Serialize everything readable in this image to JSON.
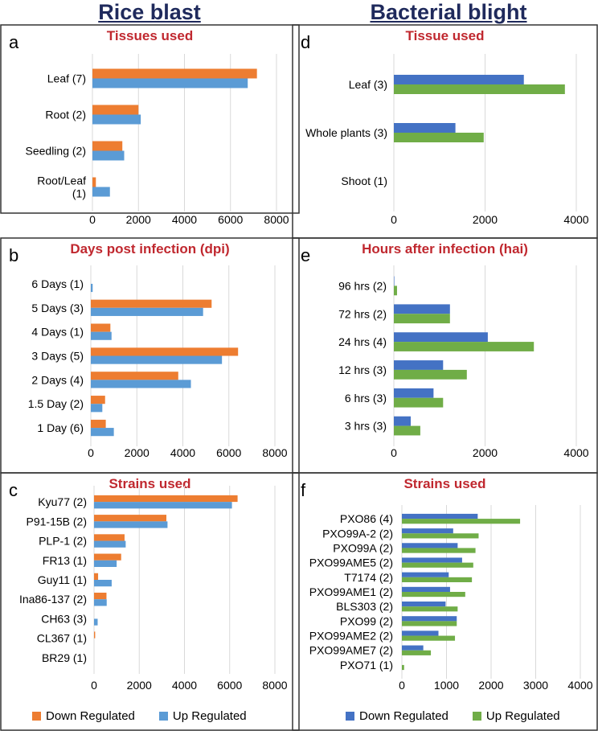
{
  "column_titles": {
    "left": "Rice blast",
    "right": "Bacterial blight"
  },
  "colors": {
    "down_rice": "#ED7D31",
    "up_rice": "#5B9BD5",
    "down_bb": "#4472C4",
    "up_bb": "#70AD47",
    "title": "#C0282F",
    "grid": "#D9D9D9",
    "border": "#333333"
  },
  "legends": {
    "left": {
      "down": "Down Regulated",
      "up": "Up Regulated"
    },
    "right": {
      "down": "Down Regulated",
      "up": "Up Regulated"
    }
  },
  "chart_data": [
    {
      "id": "a",
      "panel_label": "a",
      "type": "bar",
      "orientation": "horizontal",
      "title": "Tissues used",
      "categories": [
        "Leaf (7)",
        "Root (2)",
        "Seedling (2)",
        "Root/Leaf\n(1)"
      ],
      "series": [
        {
          "name": "Down Regulated",
          "values": [
            7150,
            2000,
            1300,
            150
          ]
        },
        {
          "name": "Up Regulated",
          "values": [
            6750,
            2100,
            1380,
            760
          ]
        }
      ],
      "xlim": [
        0,
        8000
      ],
      "xticks": [
        0,
        2000,
        4000,
        6000,
        8000
      ]
    },
    {
      "id": "b",
      "panel_label": "b",
      "type": "bar",
      "orientation": "horizontal",
      "title": "Days post infection (dpi)",
      "categories": [
        "6 Days (1)",
        "5 Days (3)",
        "4 Days (1)",
        "3 Days (5)",
        "2 Days (4)",
        "1.5 Day (2)",
        "1 Day (6)"
      ],
      "series": [
        {
          "name": "Down Regulated",
          "values": [
            0,
            5250,
            850,
            6400,
            3800,
            620,
            650
          ]
        },
        {
          "name": "Up Regulated",
          "values": [
            80,
            4880,
            900,
            5700,
            4350,
            500,
            1000
          ]
        }
      ],
      "xlim": [
        0,
        8000
      ],
      "xticks": [
        0,
        2000,
        4000,
        6000,
        8000
      ]
    },
    {
      "id": "c",
      "panel_label": "c",
      "type": "bar",
      "orientation": "horizontal",
      "title": "Strains used",
      "categories": [
        "Kyu77 (2)",
        "P91-15B (2)",
        "PLP-1 (2)",
        "FR13 (1)",
        "Guy11 (1)",
        "Ina86-137 (2)",
        "CH63 (3)",
        "CL367 (1)",
        "BR29 (1)"
      ],
      "series": [
        {
          "name": "Down Regulated",
          "values": [
            6350,
            3200,
            1350,
            1200,
            180,
            550,
            0,
            50,
            0
          ]
        },
        {
          "name": "Up Regulated",
          "values": [
            6100,
            3250,
            1400,
            1000,
            780,
            560,
            160,
            0,
            0
          ]
        }
      ],
      "xlim": [
        0,
        8000
      ],
      "xticks": [
        0,
        2000,
        4000,
        6000,
        8000
      ]
    },
    {
      "id": "d",
      "panel_label": "d",
      "type": "bar",
      "orientation": "horizontal",
      "title": "Tissue used",
      "categories": [
        "Leaf (3)",
        "Whole plants (3)",
        "Shoot (1)"
      ],
      "series": [
        {
          "name": "Down Regulated",
          "values": [
            2850,
            1350,
            0
          ]
        },
        {
          "name": "Up Regulated",
          "values": [
            3750,
            1970,
            0
          ]
        }
      ],
      "xlim": [
        0,
        4000
      ],
      "xticks": [
        0,
        2000,
        4000
      ]
    },
    {
      "id": "e",
      "panel_label": "e",
      "type": "bar",
      "orientation": "horizontal",
      "title": "Hours after infection (hai)",
      "categories": [
        "96 hrs (2)",
        "72 hrs (2)",
        "24 hrs (4)",
        "12 hrs (3)",
        "6 hrs (3)",
        "3 hrs (3)"
      ],
      "series": [
        {
          "name": "Down Regulated",
          "values": [
            10,
            1230,
            2060,
            1080,
            870,
            370
          ]
        },
        {
          "name": "Up Regulated",
          "values": [
            70,
            1230,
            3070,
            1600,
            1080,
            580
          ]
        }
      ],
      "xlim": [
        0,
        4000
      ],
      "xticks": [
        0,
        2000,
        4000
      ]
    },
    {
      "id": "f",
      "panel_label": "f",
      "type": "bar",
      "orientation": "horizontal",
      "title": "Strains used",
      "categories": [
        "PXO86 (4)",
        "PXO99A-2 (2)",
        "PXO99A (2)",
        "PXO99AME5 (2)",
        "T7174 (2)",
        "PXO99AME1 (2)",
        "BLS303 (2)",
        "PXO99 (2)",
        "PXO99AME2 (2)",
        "PXO99AME7 (2)",
        "PXO71 (1)"
      ],
      "series": [
        {
          "name": "Down Regulated",
          "values": [
            1700,
            1150,
            1250,
            1350,
            1050,
            1080,
            980,
            1230,
            820,
            480,
            0
          ]
        },
        {
          "name": "Up Regulated",
          "values": [
            2650,
            1720,
            1650,
            1600,
            1570,
            1420,
            1250,
            1230,
            1190,
            650,
            50
          ]
        }
      ],
      "xlim": [
        0,
        4000
      ],
      "xticks": [
        0,
        1000,
        2000,
        3000,
        4000
      ]
    }
  ]
}
